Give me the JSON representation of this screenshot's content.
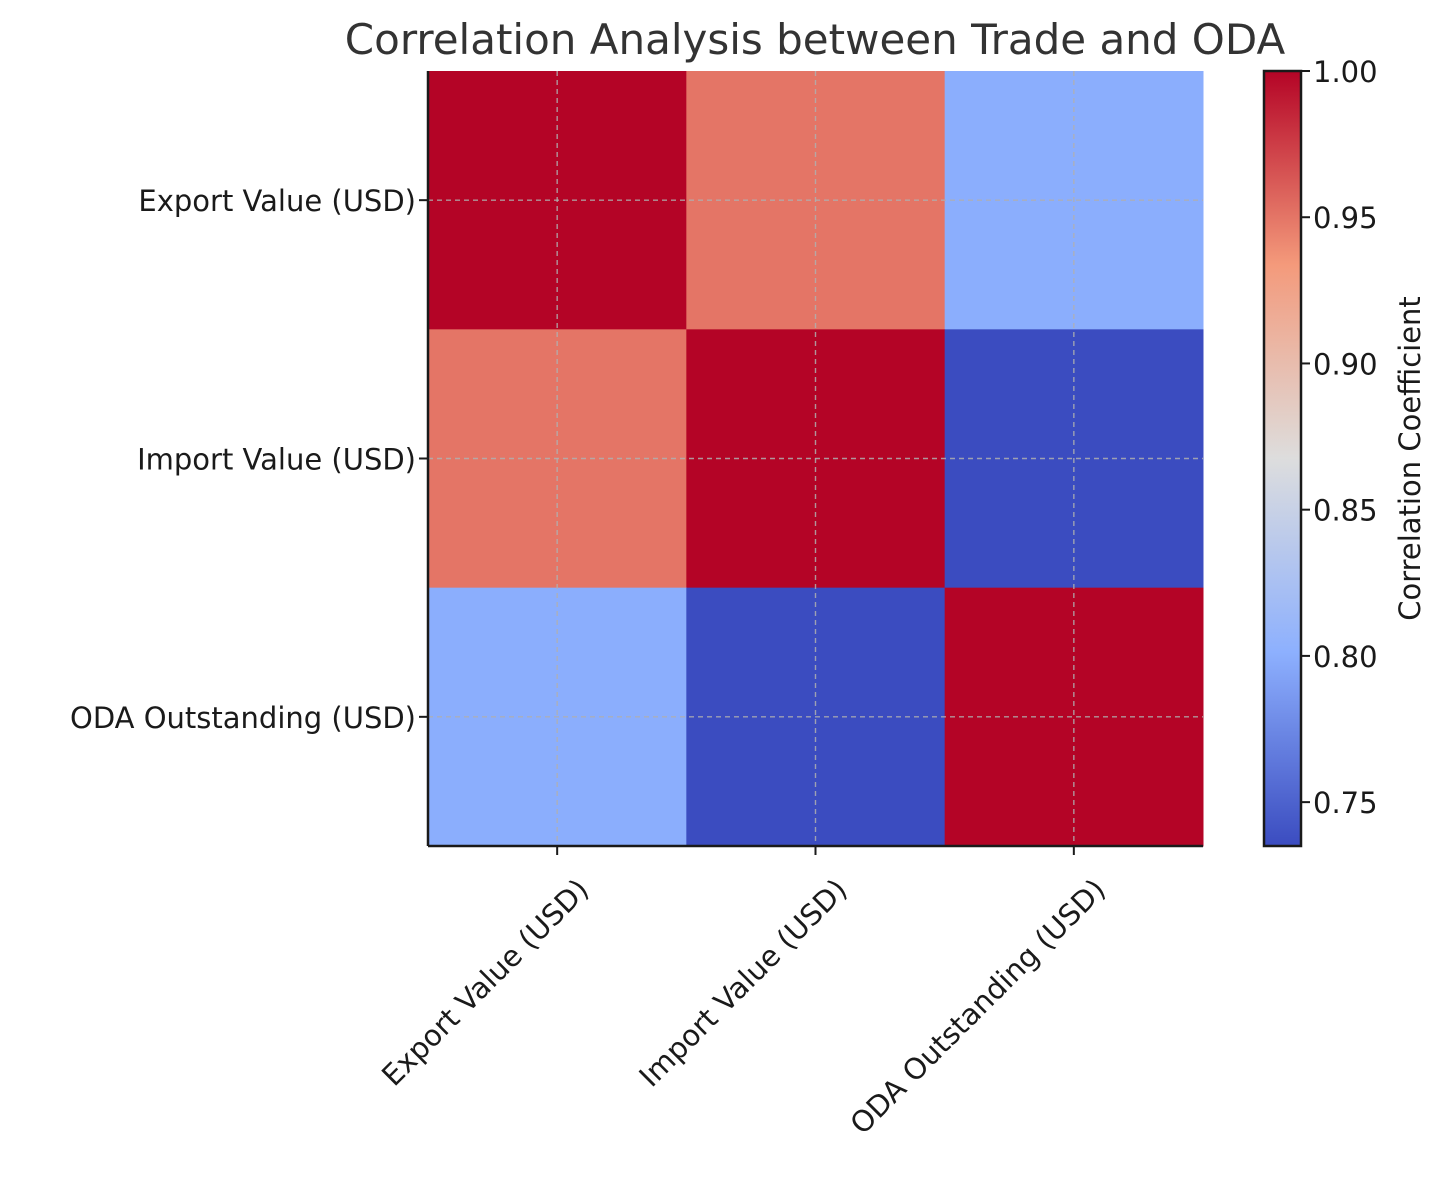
{
  "chart_data": {
    "type": "heatmap",
    "title": "Correlation Analysis between Trade and ODA",
    "x_categories": [
      "Export Value (USD)",
      "Import Value (USD)",
      "ODA Outstanding (USD)"
    ],
    "y_categories": [
      "Export Value (USD)",
      "Import Value (USD)",
      "ODA Outstanding (USD)"
    ],
    "matrix": [
      [
        1.0,
        0.95,
        0.8
      ],
      [
        0.95,
        1.0,
        0.735
      ],
      [
        0.8,
        0.735,
        1.0
      ]
    ],
    "colormap": "coolwarm",
    "vmin": 0.735,
    "vmax": 1.0,
    "colorbar": {
      "label": "Correlation Coefficient",
      "ticks": [
        "0.75",
        "0.80",
        "0.85",
        "0.90",
        "0.95",
        "1.00"
      ]
    },
    "grid": true,
    "colors": {
      "low": "#3b4cc0",
      "mid": "#dddddd",
      "high": "#b40426",
      "grid": "#b0b0b0",
      "axis": "#1a1a1a"
    }
  }
}
